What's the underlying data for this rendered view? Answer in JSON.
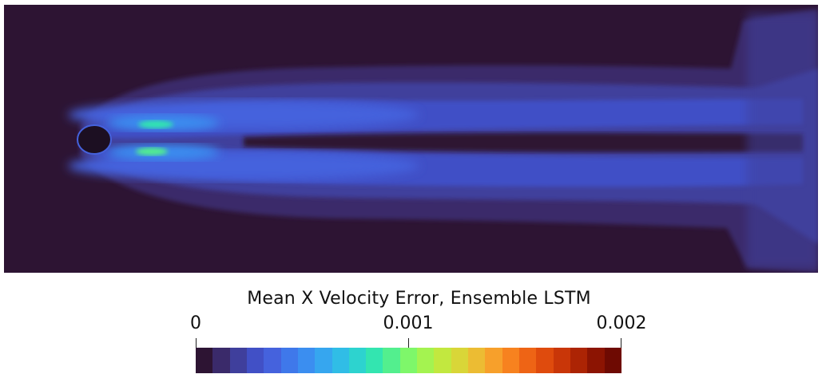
{
  "legend": {
    "title": "Mean X Velocity Error,  Ensemble LSTM",
    "ticks": [
      "0",
      "0.001",
      "0.002"
    ],
    "range": [
      0,
      0.002
    ],
    "colormap": [
      "#2d1433",
      "#3a2a6a",
      "#3f3f9c",
      "#4150c6",
      "#4562dd",
      "#3f78ea",
      "#3b8ef0",
      "#36a6ef",
      "#30bde6",
      "#2dd3cf",
      "#33e5b0",
      "#53ef8e",
      "#7ef76a",
      "#a4f350",
      "#c2e83f",
      "#d9d638",
      "#ecbc33",
      "#f7a02b",
      "#f7821f",
      "#ee6415",
      "#df4b0d",
      "#c93608",
      "#ac2404",
      "#8c1402",
      "#6e0a02"
    ]
  },
  "field": {
    "background_color": "#2d1433",
    "obstacle_color": "#1c0f22"
  }
}
